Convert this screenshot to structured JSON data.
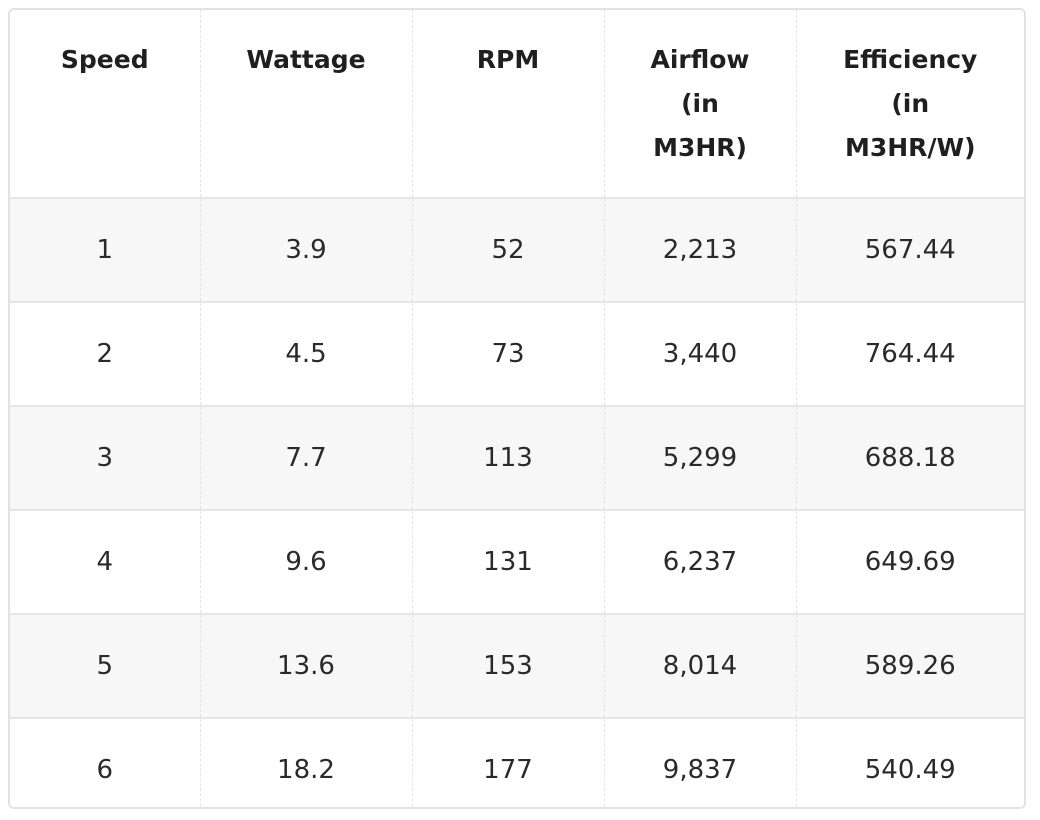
{
  "table": {
    "headers": [
      [
        "Speed"
      ],
      [
        "Wattage"
      ],
      [
        "RPM"
      ],
      [
        "Airflow",
        "(in",
        "M3HR)"
      ],
      [
        "Efficiency",
        "(in",
        "M3HR/W)"
      ]
    ],
    "rows": [
      [
        "1",
        "3.9",
        "52",
        "2,213",
        "567.44"
      ],
      [
        "2",
        "4.5",
        "73",
        "3,440",
        "764.44"
      ],
      [
        "3",
        "7.7",
        "113",
        "5,299",
        "688.18"
      ],
      [
        "4",
        "9.6",
        "131",
        "6,237",
        "649.69"
      ],
      [
        "5",
        "13.6",
        "153",
        "8,014",
        "589.26"
      ],
      [
        "6",
        "18.2",
        "177",
        "9,837",
        "540.49"
      ]
    ]
  }
}
